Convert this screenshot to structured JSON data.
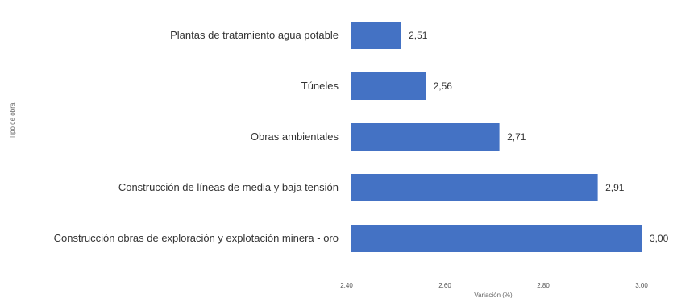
{
  "chart_data": {
    "type": "bar",
    "orientation": "horizontal",
    "title": "",
    "xlabel": "Variación (%)",
    "ylabel": "Tipo de obra",
    "categories": [
      "Plantas de tratamiento agua potable",
      "Túneles",
      "Obras ambientales",
      "Construcción de líneas de media y baja tensión",
      "Construcción obras de exploración y explotación minera - oro"
    ],
    "values": [
      2.51,
      2.56,
      2.71,
      2.91,
      3.0
    ],
    "value_labels": [
      "2,51",
      "2,56",
      "2,71",
      "2,91",
      "3,00"
    ],
    "xlim": [
      2.4,
      3.0
    ],
    "x_ticks": [
      2.4,
      2.6,
      2.8,
      3.0
    ],
    "x_tick_labels": [
      "2,40",
      "2,60",
      "2,80",
      "3,00"
    ],
    "grid": false,
    "bar_color": "#4472C4"
  }
}
